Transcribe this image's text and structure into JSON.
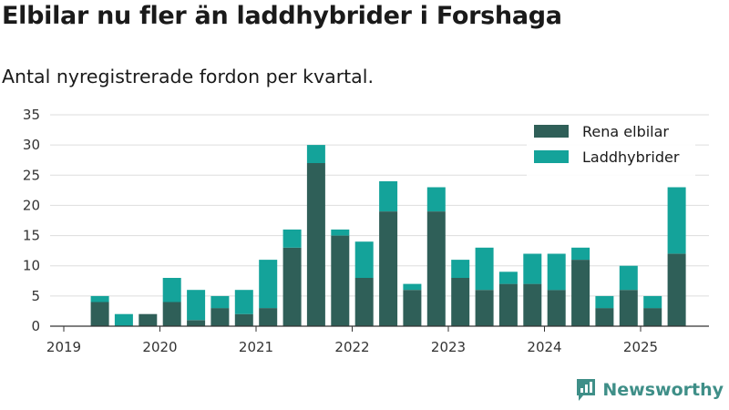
{
  "header": {
    "title": "Elbilar nu fler än laddhybrider i Forshaga",
    "subtitle": "Antal nyregistrerade fordon per kvartal."
  },
  "brand": {
    "name": "Newsworthy",
    "logo_icon": "newsworthy-chat-chart-icon"
  },
  "colors": {
    "series_1": "#2f5f58",
    "series_2": "#14a39a",
    "axis": "#333333",
    "grid": "#dddddd",
    "brand": "#3f8f88"
  },
  "chart_data": {
    "type": "bar",
    "stacked": true,
    "title": "Elbilar nu fler än laddhybrider i Forshaga",
    "subtitle": "Antal nyregistrerade fordon per kvartal.",
    "xlabel": "",
    "ylabel": "",
    "ylim": [
      0,
      35
    ],
    "y_ticks": [
      0,
      5,
      10,
      15,
      20,
      25,
      30,
      35
    ],
    "x_tick_labels": [
      "2019",
      "2020",
      "2021",
      "2022",
      "2023",
      "2024",
      "2025"
    ],
    "grid": true,
    "legend_position": "top-right",
    "categories": [
      "2019 Q2",
      "2019 Q3",
      "2019 Q4",
      "2020 Q1",
      "2020 Q2",
      "2020 Q3",
      "2020 Q4",
      "2021 Q1",
      "2021 Q2",
      "2021 Q3",
      "2021 Q4",
      "2022 Q1",
      "2022 Q2",
      "2022 Q3",
      "2022 Q4",
      "2023 Q1",
      "2023 Q2",
      "2023 Q3",
      "2023 Q4",
      "2024 Q1",
      "2024 Q2",
      "2024 Q3",
      "2024 Q4",
      "2025 Q1",
      "2025 Q2"
    ],
    "series": [
      {
        "name": "Rena elbilar",
        "values": [
          4,
          0,
          2,
          4,
          1,
          3,
          2,
          3,
          13,
          27,
          15,
          8,
          19,
          6,
          19,
          8,
          6,
          7,
          7,
          6,
          11,
          3,
          6,
          3,
          12
        ]
      },
      {
        "name": "Laddhybrider",
        "values": [
          1,
          2,
          0,
          4,
          5,
          2,
          4,
          8,
          3,
          3,
          1,
          6,
          5,
          1,
          4,
          3,
          7,
          2,
          5,
          6,
          2,
          2,
          4,
          2,
          11
        ]
      }
    ]
  }
}
